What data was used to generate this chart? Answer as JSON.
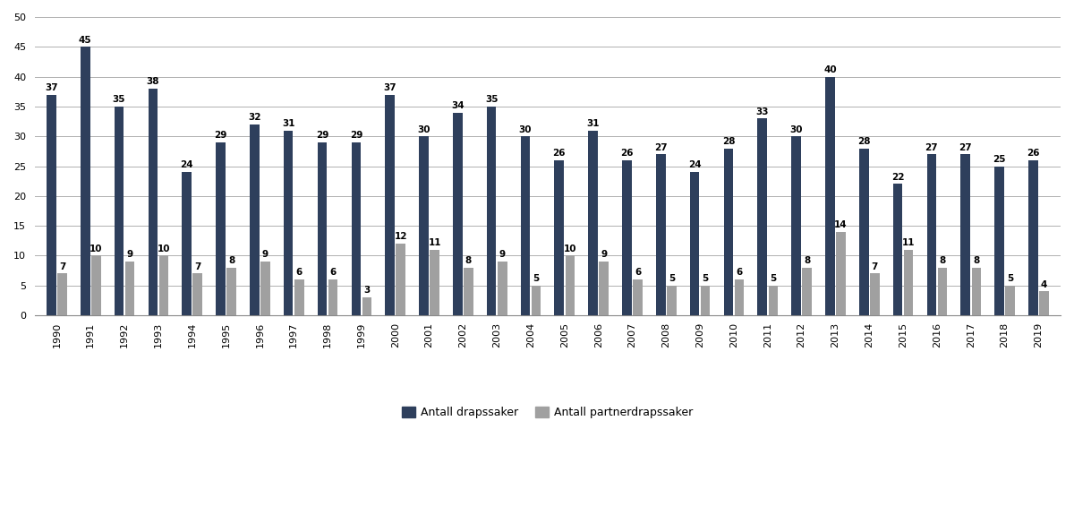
{
  "years": [
    1990,
    1991,
    1992,
    1993,
    1994,
    1995,
    1996,
    1997,
    1998,
    1999,
    2000,
    2001,
    2002,
    2003,
    2004,
    2005,
    2006,
    2007,
    2008,
    2009,
    2010,
    2011,
    2012,
    2013,
    2014,
    2015,
    2016,
    2017,
    2018,
    2019
  ],
  "drap": [
    37,
    45,
    35,
    38,
    24,
    29,
    32,
    31,
    29,
    29,
    37,
    30,
    34,
    35,
    30,
    26,
    31,
    26,
    27,
    24,
    28,
    33,
    30,
    40,
    28,
    22,
    27,
    27,
    25,
    26
  ],
  "partnerdrap": [
    7,
    10,
    9,
    10,
    7,
    8,
    9,
    6,
    6,
    3,
    12,
    11,
    8,
    9,
    5,
    10,
    9,
    6,
    5,
    5,
    6,
    5,
    8,
    14,
    7,
    11,
    8,
    8,
    5,
    4
  ],
  "drap_color": "#2e3f5c",
  "partner_color": "#a0a0a0",
  "background_color": "#ffffff",
  "grid_color": "#b0b0b0",
  "legend_label_drap": "Antall drapssaker",
  "legend_label_partner": "Antall partnerdrapssaker",
  "ylim": [
    0,
    50
  ],
  "yticks": [
    0,
    5,
    10,
    15,
    20,
    25,
    30,
    35,
    40,
    45,
    50
  ],
  "label_fontsize": 7.5,
  "tick_fontsize": 8.0,
  "legend_fontsize": 9.0,
  "bar_width": 0.28,
  "bar_gap": 0.04
}
